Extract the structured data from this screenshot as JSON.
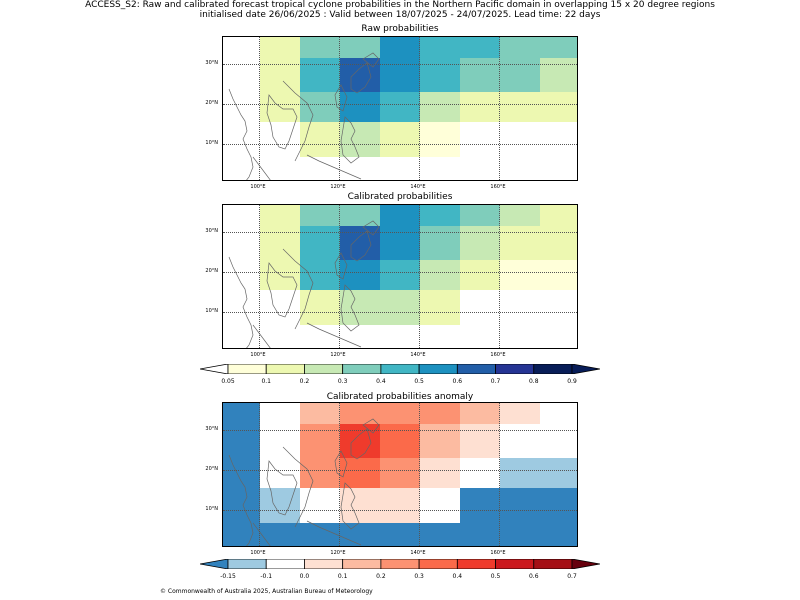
{
  "header": {
    "line1": "ACCESS_S2: Raw and calibrated forecast tropical cyclone probabilities in the Northern Pacific domain in overlapping 15 x 20 degree regions",
    "line2": "initialised date 26/06/2025 :  Valid between 18/07/2025 - 24/07/2025. Lead time: 22 days"
  },
  "panels": [
    {
      "title": "Raw probabilities",
      "lat_labels": [
        "30°N",
        "20°N",
        "10°N"
      ],
      "lon_labels": [
        "100°E",
        "120°E",
        "140°E",
        "160°E"
      ],
      "cells": [
        [
          null,
          "#edf8b1",
          "#7fcdbb",
          "#7fcdbb",
          "#1d91c0",
          "#41b6c4",
          "#41b6c4",
          "#7fcdbb",
          "#7fcdbb"
        ],
        [
          null,
          "#edf8b1",
          "#41b6c4",
          "#225ea8",
          "#1d91c0",
          "#41b6c4",
          "#7fcdbb",
          "#7fcdbb",
          "#c7e9b4"
        ],
        [
          null,
          "#edf8b1",
          "#7fcdbb",
          "#1d91c0",
          "#41b6c4",
          "#c7e9b4",
          "#edf8b1",
          "#edf8b1",
          "#edf8b1"
        ],
        [
          null,
          null,
          "#edf8b1",
          "#c7e9b4",
          "#edf8b1",
          "#ffffd9",
          null,
          null,
          null
        ],
        [
          null,
          null,
          null,
          null,
          null,
          null,
          null,
          null,
          null
        ]
      ]
    },
    {
      "title": "Calibrated probabilities",
      "lat_labels": [
        "30°N",
        "20°N",
        "10°N"
      ],
      "lon_labels": [
        "100°E",
        "120°E",
        "140°E",
        "160°E"
      ],
      "cells": [
        [
          null,
          "#edf8b1",
          "#7fcdbb",
          "#7fcdbb",
          "#1d91c0",
          "#41b6c4",
          "#7fcdbb",
          "#c7e9b4",
          "#edf8b1"
        ],
        [
          null,
          "#edf8b1",
          "#41b6c4",
          "#225ea8",
          "#1d91c0",
          "#7fcdbb",
          "#c7e9b4",
          "#edf8b1",
          "#edf8b1"
        ],
        [
          null,
          "#edf8b1",
          "#41b6c4",
          "#1d91c0",
          "#41b6c4",
          "#c7e9b4",
          "#edf8b1",
          "#ffffd9",
          "#ffffd9"
        ],
        [
          null,
          null,
          "#edf8b1",
          "#c7e9b4",
          "#c7e9b4",
          "#edf8b1",
          null,
          null,
          null
        ],
        [
          null,
          null,
          null,
          null,
          null,
          null,
          null,
          null,
          null
        ]
      ]
    },
    {
      "title": "Calibrated probabilities anomaly",
      "lat_labels": [
        "30°N",
        "20°N",
        "10°N"
      ],
      "lon_labels": [
        "100°E",
        "120°E",
        "140°E",
        "160°E"
      ],
      "cells": [
        [
          "#3182bd",
          null,
          "#fcbba1",
          "#fc9272",
          "#fc9272",
          "#fc9272",
          "#fcbba1",
          "#fee0d2",
          null
        ],
        [
          "#3182bd",
          null,
          "#fc9272",
          "#ef3b2c",
          "#fb6a4a",
          "#fcbba1",
          "#fee0d2",
          null,
          null
        ],
        [
          "#3182bd",
          null,
          "#fc9272",
          "#fb6a4a",
          "#fc9272",
          "#fee0d2",
          null,
          "#9ecae1",
          "#9ecae1"
        ],
        [
          "#3182bd",
          "#9ecae1",
          null,
          "#fee0d2",
          "#fee0d2",
          null,
          "#3182bd",
          "#3182bd",
          "#3182bd"
        ],
        [
          "#3182bd",
          "#3182bd",
          "#3182bd",
          "#3182bd",
          "#3182bd",
          "#3182bd",
          "#3182bd",
          "#3182bd",
          "#3182bd"
        ]
      ]
    }
  ],
  "colorbar_prob": {
    "labels": [
      "0.05",
      "0.1",
      "0.2",
      "0.3",
      "0.4",
      "0.5",
      "0.6",
      "0.7",
      "0.8",
      "0.9"
    ],
    "colors": [
      "#ffffd9",
      "#edf8b1",
      "#c7e9b4",
      "#7fcdbb",
      "#41b6c4",
      "#1d91c0",
      "#225ea8",
      "#253494",
      "#081d58"
    ],
    "under_color": "#ffffff",
    "over_color": "#081d58"
  },
  "colorbar_anom": {
    "labels": [
      "-0.15",
      "-0.1",
      "0.0",
      "0.1",
      "0.2",
      "0.3",
      "0.4",
      "0.5",
      "0.6",
      "0.7"
    ],
    "colors": [
      "#9ecae1",
      "#ffffff",
      "#fee0d2",
      "#fcbba1",
      "#fc9272",
      "#fb6a4a",
      "#ef3b2c",
      "#cb181d",
      "#a50f15"
    ],
    "under_color": "#3182bd",
    "over_color": "#67000d"
  },
  "footer": "© Commonwealth of Australia 2025, Australian Bureau of Meteorology"
}
